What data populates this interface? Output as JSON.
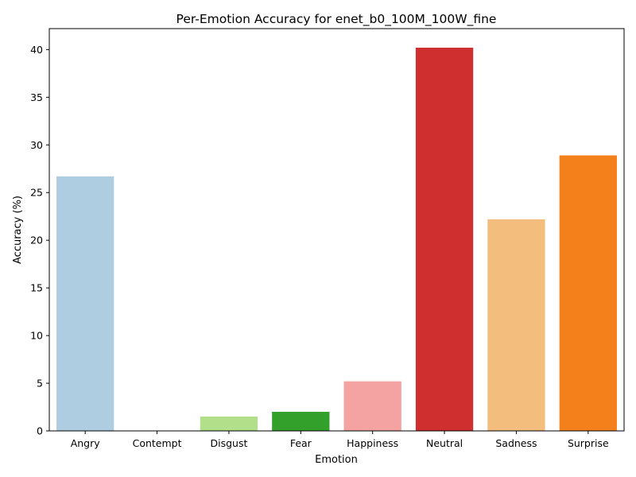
{
  "chart_data": {
    "type": "bar",
    "title": "Per-Emotion Accuracy for enet_b0_100M_100W_fine",
    "xlabel": "Emotion",
    "ylabel": "Accuracy (%)",
    "categories": [
      "Angry",
      "Contempt",
      "Disgust",
      "Fear",
      "Happiness",
      "Neutral",
      "Sadness",
      "Surprise"
    ],
    "values": [
      26.7,
      0.0,
      1.5,
      2.0,
      5.2,
      40.2,
      22.2,
      28.9
    ],
    "colors": [
      "#aecde1",
      "#1f78b4",
      "#b2df8a",
      "#33a02c",
      "#f4a3a2",
      "#cf2f2f",
      "#f3be7d",
      "#f3801a"
    ],
    "ylim": [
      0,
      42.2
    ],
    "yticks": [
      0,
      5,
      10,
      15,
      20,
      25,
      30,
      35,
      40
    ],
    "grid": false,
    "legend": "none"
  }
}
